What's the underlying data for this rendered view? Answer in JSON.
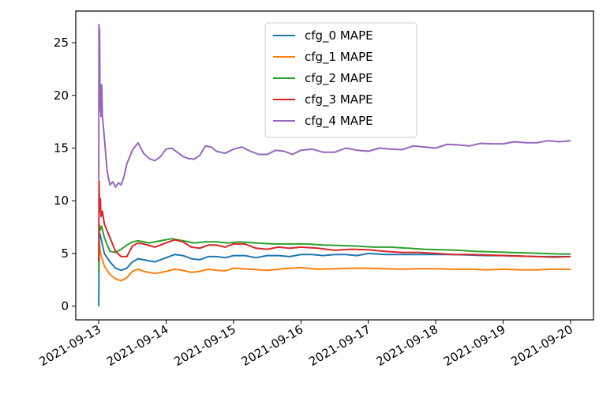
{
  "chart_data": {
    "type": "line",
    "title": "",
    "xlabel": "",
    "ylabel": "",
    "x_is_date": true,
    "xlim": [
      "2021-09-12T15:50:00",
      "2021-09-20T08:10:00"
    ],
    "ylim": [
      -1.3,
      28.0
    ],
    "x_ticks": [
      "2021-09-13",
      "2021-09-14",
      "2021-09-15",
      "2021-09-16",
      "2021-09-17",
      "2021-09-18",
      "2021-09-19",
      "2021-09-20"
    ],
    "y_ticks": [
      0,
      5,
      10,
      15,
      20,
      25
    ],
    "grid": false,
    "legend": "upper center",
    "series": [
      {
        "name": "cfg_0 MAPE",
        "color": "#1f77b4",
        "points": [
          [
            "2021-09-13T00:00",
            0.0
          ],
          [
            "2021-09-13T00:10",
            7.0
          ],
          [
            "2021-09-13T00:30",
            6.8
          ],
          [
            "2021-09-13T01:00",
            6.2
          ],
          [
            "2021-09-13T02:00",
            5.0
          ],
          [
            "2021-09-13T04:00",
            4.2
          ],
          [
            "2021-09-13T06:00",
            3.6
          ],
          [
            "2021-09-13T08:00",
            3.4
          ],
          [
            "2021-09-13T10:00",
            3.6
          ],
          [
            "2021-09-13T12:00",
            4.2
          ],
          [
            "2021-09-13T14:00",
            4.5
          ],
          [
            "2021-09-13T16:00",
            4.4
          ],
          [
            "2021-09-13T20:00",
            4.2
          ],
          [
            "2021-09-14T00:00",
            4.6
          ],
          [
            "2021-09-14T03:00",
            4.9
          ],
          [
            "2021-09-14T06:00",
            4.8
          ],
          [
            "2021-09-14T09:00",
            4.5
          ],
          [
            "2021-09-14T12:00",
            4.4
          ],
          [
            "2021-09-14T15:00",
            4.7
          ],
          [
            "2021-09-14T18:00",
            4.7
          ],
          [
            "2021-09-14T21:00",
            4.6
          ],
          [
            "2021-09-15T00:00",
            4.8
          ],
          [
            "2021-09-15T04:00",
            4.8
          ],
          [
            "2021-09-15T08:00",
            4.6
          ],
          [
            "2021-09-15T12:00",
            4.8
          ],
          [
            "2021-09-15T16:00",
            4.8
          ],
          [
            "2021-09-15T20:00",
            4.7
          ],
          [
            "2021-09-16T00:00",
            4.9
          ],
          [
            "2021-09-16T04:00",
            4.9
          ],
          [
            "2021-09-16T08:00",
            4.8
          ],
          [
            "2021-09-16T12:00",
            4.9
          ],
          [
            "2021-09-16T16:00",
            4.9
          ],
          [
            "2021-09-16T20:00",
            4.8
          ],
          [
            "2021-09-17T00:00",
            5.0
          ],
          [
            "2021-09-17T06:00",
            4.9
          ],
          [
            "2021-09-17T12:00",
            4.9
          ],
          [
            "2021-09-17T18:00",
            4.9
          ],
          [
            "2021-09-18T00:00",
            4.9
          ],
          [
            "2021-09-18T06:00",
            4.9
          ],
          [
            "2021-09-18T12:00",
            4.85
          ],
          [
            "2021-09-18T18:00",
            4.8
          ],
          [
            "2021-09-19T00:00",
            4.8
          ],
          [
            "2021-09-19T06:00",
            4.75
          ],
          [
            "2021-09-19T12:00",
            4.7
          ],
          [
            "2021-09-19T18:00",
            4.7
          ],
          [
            "2021-09-20T00:00",
            4.7
          ]
        ]
      },
      {
        "name": "cfg_1 MAPE",
        "color": "#ff7f0e",
        "points": [
          [
            "2021-09-13T00:00",
            4.5
          ],
          [
            "2021-09-13T00:15",
            6.0
          ],
          [
            "2021-09-13T00:40",
            5.0
          ],
          [
            "2021-09-13T02:00",
            3.8
          ],
          [
            "2021-09-13T04:00",
            3.0
          ],
          [
            "2021-09-13T06:00",
            2.6
          ],
          [
            "2021-09-13T08:00",
            2.4
          ],
          [
            "2021-09-13T10:00",
            2.7
          ],
          [
            "2021-09-13T12:00",
            3.3
          ],
          [
            "2021-09-13T14:00",
            3.5
          ],
          [
            "2021-09-13T16:00",
            3.3
          ],
          [
            "2021-09-13T20:00",
            3.1
          ],
          [
            "2021-09-14T00:00",
            3.3
          ],
          [
            "2021-09-14T03:00",
            3.5
          ],
          [
            "2021-09-14T06:00",
            3.4
          ],
          [
            "2021-09-14T09:00",
            3.2
          ],
          [
            "2021-09-14T12:00",
            3.3
          ],
          [
            "2021-09-14T15:00",
            3.5
          ],
          [
            "2021-09-14T18:00",
            3.4
          ],
          [
            "2021-09-14T21:00",
            3.35
          ],
          [
            "2021-09-15T00:00",
            3.6
          ],
          [
            "2021-09-15T06:00",
            3.5
          ],
          [
            "2021-09-15T12:00",
            3.4
          ],
          [
            "2021-09-15T18:00",
            3.55
          ],
          [
            "2021-09-16T00:00",
            3.65
          ],
          [
            "2021-09-16T06:00",
            3.5
          ],
          [
            "2021-09-16T12:00",
            3.55
          ],
          [
            "2021-09-16T18:00",
            3.6
          ],
          [
            "2021-09-17T00:00",
            3.6
          ],
          [
            "2021-09-17T06:00",
            3.55
          ],
          [
            "2021-09-17T12:00",
            3.5
          ],
          [
            "2021-09-17T18:00",
            3.55
          ],
          [
            "2021-09-18T00:00",
            3.55
          ],
          [
            "2021-09-18T06:00",
            3.5
          ],
          [
            "2021-09-18T12:00",
            3.5
          ],
          [
            "2021-09-18T18:00",
            3.45
          ],
          [
            "2021-09-19T00:00",
            3.5
          ],
          [
            "2021-09-19T06:00",
            3.45
          ],
          [
            "2021-09-19T12:00",
            3.45
          ],
          [
            "2021-09-19T18:00",
            3.5
          ],
          [
            "2021-09-20T00:00",
            3.5
          ]
        ]
      },
      {
        "name": "cfg_2 MAPE",
        "color": "#2ca02c",
        "points": [
          [
            "2021-09-13T00:00",
            3.2
          ],
          [
            "2021-09-13T00:10",
            7.8
          ],
          [
            "2021-09-13T00:30",
            7.2
          ],
          [
            "2021-09-13T01:00",
            7.6
          ],
          [
            "2021-09-13T02:00",
            6.5
          ],
          [
            "2021-09-13T04:00",
            5.2
          ],
          [
            "2021-09-13T06:00",
            5.1
          ],
          [
            "2021-09-13T08:00",
            5.4
          ],
          [
            "2021-09-13T10:00",
            5.8
          ],
          [
            "2021-09-13T12:00",
            6.1
          ],
          [
            "2021-09-13T14:00",
            6.2
          ],
          [
            "2021-09-13T18:00",
            6.0
          ],
          [
            "2021-09-13T22:00",
            6.2
          ],
          [
            "2021-09-14T02:00",
            6.4
          ],
          [
            "2021-09-14T06:00",
            6.2
          ],
          [
            "2021-09-14T10:00",
            6.0
          ],
          [
            "2021-09-14T14:00",
            6.1
          ],
          [
            "2021-09-14T18:00",
            6.1
          ],
          [
            "2021-09-14T22:00",
            6.0
          ],
          [
            "2021-09-15T02:00",
            6.1
          ],
          [
            "2021-09-15T08:00",
            6.0
          ],
          [
            "2021-09-15T14:00",
            5.9
          ],
          [
            "2021-09-15T20:00",
            5.9
          ],
          [
            "2021-09-16T02:00",
            5.9
          ],
          [
            "2021-09-16T08:00",
            5.8
          ],
          [
            "2021-09-16T14:00",
            5.75
          ],
          [
            "2021-09-16T20:00",
            5.7
          ],
          [
            "2021-09-17T02:00",
            5.6
          ],
          [
            "2021-09-17T08:00",
            5.6
          ],
          [
            "2021-09-17T14:00",
            5.5
          ],
          [
            "2021-09-17T20:00",
            5.4
          ],
          [
            "2021-09-18T02:00",
            5.35
          ],
          [
            "2021-09-18T08:00",
            5.3
          ],
          [
            "2021-09-18T14:00",
            5.2
          ],
          [
            "2021-09-18T20:00",
            5.15
          ],
          [
            "2021-09-19T02:00",
            5.1
          ],
          [
            "2021-09-19T08:00",
            5.05
          ],
          [
            "2021-09-19T14:00",
            5.0
          ],
          [
            "2021-09-19T20:00",
            4.95
          ],
          [
            "2021-09-20T00:00",
            4.95
          ]
        ]
      },
      {
        "name": "cfg_3 MAPE",
        "color": "#d62728",
        "points": [
          [
            "2021-09-13T00:00",
            4.2
          ],
          [
            "2021-09-13T00:08",
            11.9
          ],
          [
            "2021-09-13T00:20",
            9.0
          ],
          [
            "2021-09-13T00:35",
            10.2
          ],
          [
            "2021-09-13T00:50",
            8.5
          ],
          [
            "2021-09-13T01:20",
            9.0
          ],
          [
            "2021-09-13T02:00",
            7.8
          ],
          [
            "2021-09-13T04:00",
            6.5
          ],
          [
            "2021-09-13T06:00",
            5.2
          ],
          [
            "2021-09-13T08:00",
            4.7
          ],
          [
            "2021-09-13T10:00",
            4.7
          ],
          [
            "2021-09-13T12:00",
            5.7
          ],
          [
            "2021-09-13T14:00",
            6.0
          ],
          [
            "2021-09-13T16:00",
            5.9
          ],
          [
            "2021-09-13T20:00",
            5.6
          ],
          [
            "2021-09-14T00:00",
            6.0
          ],
          [
            "2021-09-14T03:00",
            6.3
          ],
          [
            "2021-09-14T06:00",
            6.1
          ],
          [
            "2021-09-14T09:00",
            5.6
          ],
          [
            "2021-09-14T12:00",
            5.5
          ],
          [
            "2021-09-14T15:00",
            5.8
          ],
          [
            "2021-09-14T18:00",
            5.8
          ],
          [
            "2021-09-14T21:00",
            5.6
          ],
          [
            "2021-09-15T00:00",
            5.9
          ],
          [
            "2021-09-15T04:00",
            5.9
          ],
          [
            "2021-09-15T08:00",
            5.5
          ],
          [
            "2021-09-15T12:00",
            5.4
          ],
          [
            "2021-09-15T16:00",
            5.6
          ],
          [
            "2021-09-15T20:00",
            5.5
          ],
          [
            "2021-09-16T00:00",
            5.6
          ],
          [
            "2021-09-16T06:00",
            5.5
          ],
          [
            "2021-09-16T12:00",
            5.3
          ],
          [
            "2021-09-16T18:00",
            5.4
          ],
          [
            "2021-09-17T00:00",
            5.35
          ],
          [
            "2021-09-17T06:00",
            5.2
          ],
          [
            "2021-09-17T12:00",
            5.1
          ],
          [
            "2021-09-17T18:00",
            5.1
          ],
          [
            "2021-09-18T00:00",
            5.0
          ],
          [
            "2021-09-18T06:00",
            4.9
          ],
          [
            "2021-09-18T12:00",
            4.9
          ],
          [
            "2021-09-18T18:00",
            4.85
          ],
          [
            "2021-09-19T00:00",
            4.8
          ],
          [
            "2021-09-19T06:00",
            4.75
          ],
          [
            "2021-09-19T12:00",
            4.7
          ],
          [
            "2021-09-19T18:00",
            4.65
          ],
          [
            "2021-09-20T00:00",
            4.7
          ]
        ]
      },
      {
        "name": "cfg_4 MAPE",
        "color": "#9467bd",
        "points": [
          [
            "2021-09-13T00:00",
            12.0
          ],
          [
            "2021-09-13T00:05",
            26.7
          ],
          [
            "2021-09-13T00:12",
            24.0
          ],
          [
            "2021-09-13T00:20",
            26.3
          ],
          [
            "2021-09-13T00:30",
            18.5
          ],
          [
            "2021-09-13T00:40",
            21.0
          ],
          [
            "2021-09-13T00:50",
            18.0
          ],
          [
            "2021-09-13T01:05",
            21.0
          ],
          [
            "2021-09-13T01:20",
            18.0
          ],
          [
            "2021-09-13T02:00",
            16.0
          ],
          [
            "2021-09-13T03:00",
            12.8
          ],
          [
            "2021-09-13T04:00",
            11.5
          ],
          [
            "2021-09-13T05:00",
            11.8
          ],
          [
            "2021-09-13T06:00",
            11.3
          ],
          [
            "2021-09-13T07:00",
            11.7
          ],
          [
            "2021-09-13T08:00",
            11.5
          ],
          [
            "2021-09-13T09:00",
            12.3
          ],
          [
            "2021-09-13T10:00",
            13.5
          ],
          [
            "2021-09-13T12:00",
            14.8
          ],
          [
            "2021-09-13T14:00",
            15.5
          ],
          [
            "2021-09-13T16:00",
            14.5
          ],
          [
            "2021-09-13T18:00",
            14.0
          ],
          [
            "2021-09-13T20:00",
            13.8
          ],
          [
            "2021-09-13T22:00",
            14.2
          ],
          [
            "2021-09-14T00:00",
            14.9
          ],
          [
            "2021-09-14T02:00",
            15.0
          ],
          [
            "2021-09-14T04:00",
            14.6
          ],
          [
            "2021-09-14T06:00",
            14.2
          ],
          [
            "2021-09-14T08:00",
            14.0
          ],
          [
            "2021-09-14T10:00",
            13.95
          ],
          [
            "2021-09-14T12:00",
            14.3
          ],
          [
            "2021-09-14T14:00",
            15.2
          ],
          [
            "2021-09-14T16:00",
            15.1
          ],
          [
            "2021-09-14T18:00",
            14.7
          ],
          [
            "2021-09-14T21:00",
            14.5
          ],
          [
            "2021-09-15T00:00",
            14.9
          ],
          [
            "2021-09-15T03:00",
            15.1
          ],
          [
            "2021-09-15T06:00",
            14.7
          ],
          [
            "2021-09-15T09:00",
            14.4
          ],
          [
            "2021-09-15T12:00",
            14.4
          ],
          [
            "2021-09-15T15:00",
            14.8
          ],
          [
            "2021-09-15T18:00",
            14.7
          ],
          [
            "2021-09-15T21:00",
            14.4
          ],
          [
            "2021-09-16T00:00",
            14.8
          ],
          [
            "2021-09-16T04:00",
            14.9
          ],
          [
            "2021-09-16T08:00",
            14.6
          ],
          [
            "2021-09-16T12:00",
            14.6
          ],
          [
            "2021-09-16T16:00",
            15.0
          ],
          [
            "2021-09-16T20:00",
            14.8
          ],
          [
            "2021-09-17T00:00",
            14.7
          ],
          [
            "2021-09-17T04:00",
            15.0
          ],
          [
            "2021-09-17T08:00",
            14.9
          ],
          [
            "2021-09-17T12:00",
            14.85
          ],
          [
            "2021-09-17T16:00",
            15.2
          ],
          [
            "2021-09-17T20:00",
            15.1
          ],
          [
            "2021-09-18T00:00",
            15.0
          ],
          [
            "2021-09-18T04:00",
            15.35
          ],
          [
            "2021-09-18T08:00",
            15.3
          ],
          [
            "2021-09-18T12:00",
            15.2
          ],
          [
            "2021-09-18T16:00",
            15.45
          ],
          [
            "2021-09-18T20:00",
            15.4
          ],
          [
            "2021-09-19T00:00",
            15.4
          ],
          [
            "2021-09-19T04:00",
            15.6
          ],
          [
            "2021-09-19T08:00",
            15.5
          ],
          [
            "2021-09-19T12:00",
            15.5
          ],
          [
            "2021-09-19T16:00",
            15.7
          ],
          [
            "2021-09-19T20:00",
            15.6
          ],
          [
            "2021-09-20T00:00",
            15.7
          ]
        ]
      }
    ]
  }
}
